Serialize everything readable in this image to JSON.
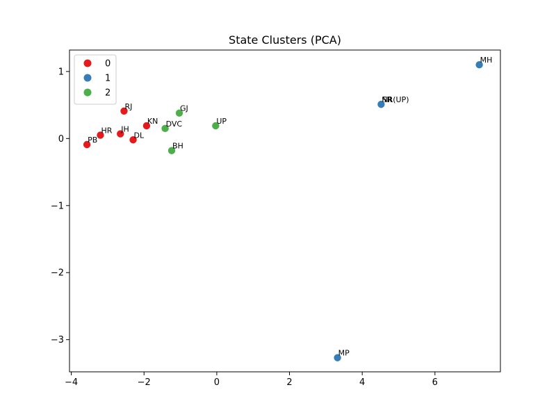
{
  "chart_data": {
    "type": "scatter",
    "title": "State Clusters (PCA)",
    "xlabel": "",
    "ylabel": "",
    "xlim": [
      -4.05,
      7.8
    ],
    "ylim": [
      -3.48,
      1.32
    ],
    "xticks": [
      -4,
      -2,
      0,
      2,
      4,
      6
    ],
    "yticks": [
      -3,
      -2,
      -1,
      0,
      1
    ],
    "xtick_labels": [
      "−4",
      "−2",
      "0",
      "2",
      "4",
      "6"
    ],
    "ytick_labels": [
      "−3",
      "−2",
      "−1",
      "0",
      "1"
    ],
    "grid": false,
    "legend_position": "upper-left",
    "series": [
      {
        "name": "0",
        "color": "#e41a1c",
        "points": [
          {
            "label": "RJ",
            "x": -2.55,
            "y": 0.41
          },
          {
            "label": "HR",
            "x": -3.2,
            "y": 0.05
          },
          {
            "label": "JH",
            "x": -2.65,
            "y": 0.07
          },
          {
            "label": "KN",
            "x": -1.93,
            "y": 0.19
          },
          {
            "label": "DL",
            "x": -2.3,
            "y": -0.02
          },
          {
            "label": "PB",
            "x": -3.57,
            "y": -0.09
          }
        ]
      },
      {
        "name": "1",
        "color": "#377eb8",
        "points": [
          {
            "label": "MH",
            "x": 7.22,
            "y": 1.1
          },
          {
            "label": "SR",
            "x": 4.52,
            "y": 0.51
          },
          {
            "label": "NR(UP)",
            "x": 4.52,
            "y": 0.51
          },
          {
            "label": "NR",
            "x": 4.52,
            "y": 0.51
          },
          {
            "label": "MP",
            "x": 3.32,
            "y": -3.27
          }
        ]
      },
      {
        "name": "2",
        "color": "#4daf4a",
        "points": [
          {
            "label": "GJ",
            "x": -1.03,
            "y": 0.38
          },
          {
            "label": "DVC",
            "x": -1.42,
            "y": 0.15
          },
          {
            "label": "UP",
            "x": -0.03,
            "y": 0.19
          },
          {
            "label": "BH",
            "x": -1.24,
            "y": -0.18
          }
        ]
      }
    ]
  }
}
